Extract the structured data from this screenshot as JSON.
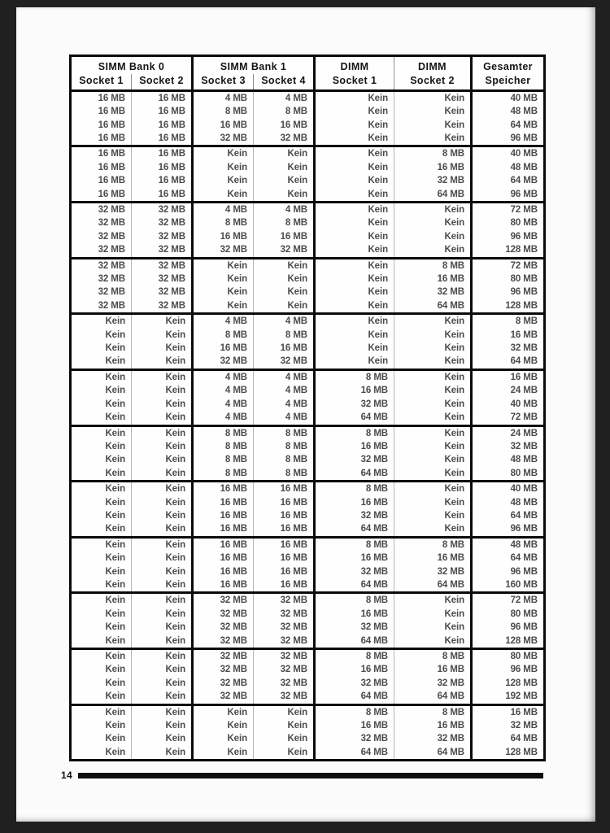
{
  "colors": {
    "viewer_background": "#202020",
    "page_background": "#fbfbfb",
    "table_border": "#0b0b0b",
    "thin_divider": "#b7b7b7",
    "data_text": "#4c4c4c"
  },
  "page": {
    "page_number": "14"
  },
  "table": {
    "header": {
      "groups": [
        {
          "title": "SIMM Bank 0",
          "subs": [
            "Socket 1",
            "Socket 2"
          ]
        },
        {
          "title": "SIMM Bank 1",
          "subs": [
            "Socket 3",
            "Socket 4"
          ]
        },
        {
          "title": "DIMM",
          "subs": [
            "Socket 1"
          ]
        },
        {
          "title": "DIMM",
          "subs": [
            "Socket 2"
          ]
        },
        {
          "title": "Gesamter",
          "subs": [
            "Speicher"
          ]
        }
      ]
    },
    "none_label": "Kein",
    "groups": [
      {
        "rows": [
          [
            "16 MB",
            "16 MB",
            "4 MB",
            "4 MB",
            "Kein",
            "Kein",
            "40 MB"
          ],
          [
            "16 MB",
            "16 MB",
            "8 MB",
            "8 MB",
            "Kein",
            "Kein",
            "48 MB"
          ],
          [
            "16 MB",
            "16 MB",
            "16 MB",
            "16 MB",
            "Kein",
            "Kein",
            "64 MB"
          ],
          [
            "16 MB",
            "16 MB",
            "32 MB",
            "32 MB",
            "Kein",
            "Kein",
            "96 MB"
          ]
        ]
      },
      {
        "rows": [
          [
            "16 MB",
            "16 MB",
            "Kein",
            "Kein",
            "Kein",
            "8 MB",
            "40 MB"
          ],
          [
            "16 MB",
            "16 MB",
            "Kein",
            "Kein",
            "Kein",
            "16 MB",
            "48 MB"
          ],
          [
            "16 MB",
            "16 MB",
            "Kein",
            "Kein",
            "Kein",
            "32 MB",
            "64 MB"
          ],
          [
            "16 MB",
            "16 MB",
            "Kein",
            "Kein",
            "Kein",
            "64 MB",
            "96 MB"
          ]
        ]
      },
      {
        "rows": [
          [
            "32 MB",
            "32 MB",
            "4 MB",
            "4 MB",
            "Kein",
            "Kein",
            "72 MB"
          ],
          [
            "32 MB",
            "32 MB",
            "8 MB",
            "8 MB",
            "Kein",
            "Kein",
            "80 MB"
          ],
          [
            "32 MB",
            "32 MB",
            "16 MB",
            "16 MB",
            "Kein",
            "Kein",
            "96 MB"
          ],
          [
            "32 MB",
            "32 MB",
            "32 MB",
            "32 MB",
            "Kein",
            "Kein",
            "128 MB"
          ]
        ]
      },
      {
        "rows": [
          [
            "32 MB",
            "32 MB",
            "Kein",
            "Kein",
            "Kein",
            "8 MB",
            "72 MB"
          ],
          [
            "32 MB",
            "32 MB",
            "Kein",
            "Kein",
            "Kein",
            "16 MB",
            "80 MB"
          ],
          [
            "32 MB",
            "32 MB",
            "Kein",
            "Kein",
            "Kein",
            "32 MB",
            "96 MB"
          ],
          [
            "32 MB",
            "32 MB",
            "Kein",
            "Kein",
            "Kein",
            "64 MB",
            "128 MB"
          ]
        ]
      },
      {
        "rows": [
          [
            "Kein",
            "Kein",
            "4 MB",
            "4 MB",
            "Kein",
            "Kein",
            "8 MB"
          ],
          [
            "Kein",
            "Kein",
            "8 MB",
            "8 MB",
            "Kein",
            "Kein",
            "16 MB"
          ],
          [
            "Kein",
            "Kein",
            "16 MB",
            "16 MB",
            "Kein",
            "Kein",
            "32 MB"
          ],
          [
            "Kein",
            "Kein",
            "32 MB",
            "32 MB",
            "Kein",
            "Kein",
            "64 MB"
          ]
        ]
      },
      {
        "rows": [
          [
            "Kein",
            "Kein",
            "4 MB",
            "4 MB",
            "8 MB",
            "Kein",
            "16 MB"
          ],
          [
            "Kein",
            "Kein",
            "4 MB",
            "4 MB",
            "16 MB",
            "Kein",
            "24 MB"
          ],
          [
            "Kein",
            "Kein",
            "4 MB",
            "4 MB",
            "32 MB",
            "Kein",
            "40 MB"
          ],
          [
            "Kein",
            "Kein",
            "4 MB",
            "4 MB",
            "64 MB",
            "Kein",
            "72 MB"
          ]
        ]
      },
      {
        "rows": [
          [
            "Kein",
            "Kein",
            "8 MB",
            "8 MB",
            "8 MB",
            "Kein",
            "24 MB"
          ],
          [
            "Kein",
            "Kein",
            "8 MB",
            "8 MB",
            "16 MB",
            "Kein",
            "32 MB"
          ],
          [
            "Kein",
            "Kein",
            "8 MB",
            "8 MB",
            "32 MB",
            "Kein",
            "48 MB"
          ],
          [
            "Kein",
            "Kein",
            "8 MB",
            "8 MB",
            "64 MB",
            "Kein",
            "80 MB"
          ]
        ]
      },
      {
        "rows": [
          [
            "Kein",
            "Kein",
            "16 MB",
            "16 MB",
            "8 MB",
            "Kein",
            "40 MB"
          ],
          [
            "Kein",
            "Kein",
            "16 MB",
            "16 MB",
            "16 MB",
            "Kein",
            "48 MB"
          ],
          [
            "Kein",
            "Kein",
            "16 MB",
            "16 MB",
            "32 MB",
            "Kein",
            "64 MB"
          ],
          [
            "Kein",
            "Kein",
            "16 MB",
            "16 MB",
            "64 MB",
            "Kein",
            "96 MB"
          ]
        ]
      },
      {
        "rows": [
          [
            "Kein",
            "Kein",
            "16 MB",
            "16 MB",
            "8 MB",
            "8 MB",
            "48 MB"
          ],
          [
            "Kein",
            "Kein",
            "16 MB",
            "16 MB",
            "16 MB",
            "16 MB",
            "64 MB"
          ],
          [
            "Kein",
            "Kein",
            "16 MB",
            "16 MB",
            "32 MB",
            "32 MB",
            "96 MB"
          ],
          [
            "Kein",
            "Kein",
            "16 MB",
            "16 MB",
            "64 MB",
            "64 MB",
            "160 MB"
          ]
        ]
      },
      {
        "rows": [
          [
            "Kein",
            "Kein",
            "32 MB",
            "32 MB",
            "8 MB",
            "Kein",
            "72 MB"
          ],
          [
            "Kein",
            "Kein",
            "32 MB",
            "32 MB",
            "16 MB",
            "Kein",
            "80 MB"
          ],
          [
            "Kein",
            "Kein",
            "32 MB",
            "32 MB",
            "32 MB",
            "Kein",
            "96 MB"
          ],
          [
            "Kein",
            "Kein",
            "32 MB",
            "32 MB",
            "64 MB",
            "Kein",
            "128 MB"
          ]
        ]
      },
      {
        "rows": [
          [
            "Kein",
            "Kein",
            "32 MB",
            "32 MB",
            "8 MB",
            "8 MB",
            "80 MB"
          ],
          [
            "Kein",
            "Kein",
            "32 MB",
            "32 MB",
            "16 MB",
            "16 MB",
            "96 MB"
          ],
          [
            "Kein",
            "Kein",
            "32 MB",
            "32 MB",
            "32 MB",
            "32 MB",
            "128 MB"
          ],
          [
            "Kein",
            "Kein",
            "32 MB",
            "32 MB",
            "64 MB",
            "64 MB",
            "192 MB"
          ]
        ]
      },
      {
        "rows": [
          [
            "Kein",
            "Kein",
            "Kein",
            "Kein",
            "8 MB",
            "8 MB",
            "16 MB"
          ],
          [
            "Kein",
            "Kein",
            "Kein",
            "Kein",
            "16 MB",
            "16 MB",
            "32 MB"
          ],
          [
            "Kein",
            "Kein",
            "Kein",
            "Kein",
            "32 MB",
            "32 MB",
            "64 MB"
          ],
          [
            "Kein",
            "Kein",
            "Kein",
            "Kein",
            "64 MB",
            "64 MB",
            "128 MB"
          ]
        ]
      }
    ]
  }
}
